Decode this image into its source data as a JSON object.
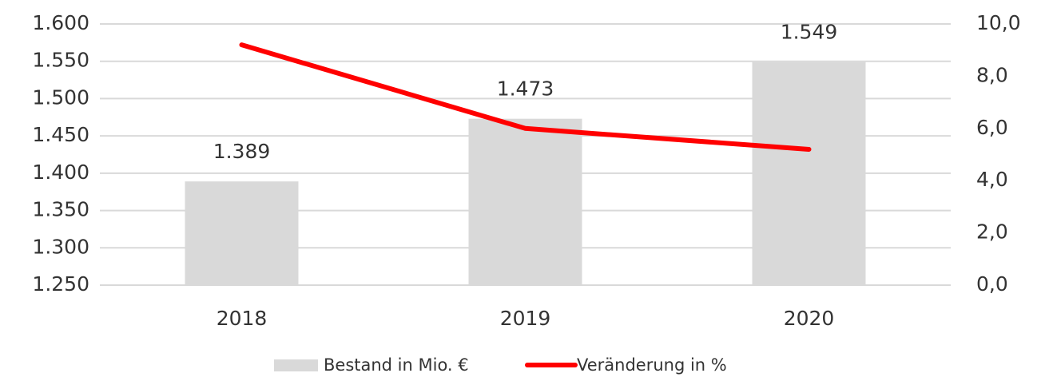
{
  "chart_data": {
    "type": "bar",
    "categories": [
      "2018",
      "2019",
      "2020"
    ],
    "series": [
      {
        "name": "Bestand in Mio. €",
        "type": "bar",
        "color": "#d9d9d9",
        "values": [
          1389,
          1473,
          1549
        ],
        "value_labels": [
          "1.389",
          "1.473",
          "1.549"
        ]
      },
      {
        "name": "Veränderung in %",
        "type": "line",
        "axis": "y2",
        "color": "#ff0000",
        "values": [
          9.2,
          6.0,
          5.2
        ]
      }
    ],
    "ylim": [
      1250,
      1600
    ],
    "yticks": [
      {
        "value": 1250,
        "label": "1.250"
      },
      {
        "value": 1300,
        "label": "1.300"
      },
      {
        "value": 1350,
        "label": "1.350"
      },
      {
        "value": 1400,
        "label": "1.400"
      },
      {
        "value": 1450,
        "label": "1.450"
      },
      {
        "value": 1500,
        "label": "1.500"
      },
      {
        "value": 1550,
        "label": "1.550"
      },
      {
        "value": 1600,
        "label": "1.600"
      }
    ],
    "y2lim": [
      0,
      10
    ],
    "y2ticks": [
      {
        "value": 0,
        "label": "0,0"
      },
      {
        "value": 2,
        "label": "2,0"
      },
      {
        "value": 4,
        "label": "4,0"
      },
      {
        "value": 6,
        "label": "6,0"
      },
      {
        "value": 8,
        "label": "8,0"
      },
      {
        "value": 10,
        "label": "10,0"
      }
    ],
    "grid": true,
    "legend": "bottom"
  }
}
